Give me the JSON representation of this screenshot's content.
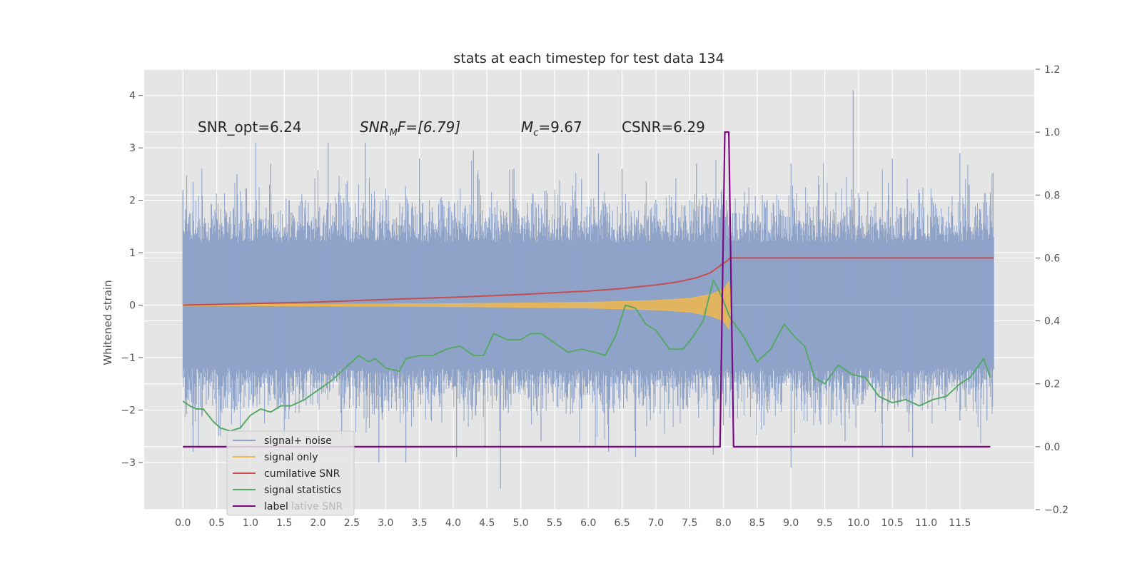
{
  "chart_data": {
    "type": "line",
    "title": "stats at each timestep for test data 134",
    "ylabel": "Whitened strain",
    "xlabel": "",
    "xlim": [
      -0.5735,
      12.6
    ],
    "ylim_left": [
      -3.9,
      4.5
    ],
    "ylim_right": [
      -0.2,
      1.2
    ],
    "grid": true,
    "legend_position": "lower-left",
    "x_ticks": [
      "0.0",
      "0.5",
      "1.0",
      "1.5",
      "2.0",
      "2.5",
      "3.0",
      "3.5",
      "4.0",
      "4.5",
      "5.0",
      "5.5",
      "6.0",
      "6.5",
      "7.0",
      "7.5",
      "8.0",
      "8.5",
      "9.0",
      "9.5",
      "10.0",
      "10.5",
      "11.0",
      "11.5"
    ],
    "y_ticks_left": [
      "−3",
      "−2",
      "−1",
      "0",
      "1",
      "2",
      "3",
      "4"
    ],
    "y_ticks_right": [
      "−0.2",
      "0.0",
      "0.2",
      "0.4",
      "0.6",
      "0.8",
      "1.0",
      "1.2"
    ],
    "annotations": {
      "snr_opt": "SNR_opt=6.24",
      "snr_mf_main": "SNR",
      "snr_mf_sub": "M",
      "snr_mf_rest": "F=[6.79]",
      "mc_main": "M",
      "mc_sub": "c",
      "mc_rest": "=9.67",
      "csnr": "CSNR=6.29"
    },
    "legend": {
      "entries": [
        "signal+ noise",
        "signal only",
        "cumilative SNR",
        "signal statistics",
        "label"
      ],
      "ghost_text": "lative SNR"
    },
    "colors": {
      "signal_noise": "#8fa3c9",
      "signal_only": "#f0b94e",
      "cumulative_snr": "#c44e52",
      "signal_statistics": "#55a868",
      "label": "#7b0a82",
      "axes_bg": "#e5e5e5",
      "grid": "#ffffff"
    },
    "series": [
      {
        "name": "signal+ noise",
        "axis": "left",
        "kind": "noise-band",
        "x_range": [
          0.0,
          12.0
        ],
        "core_amplitude": 1.0,
        "spike_max_values": [
          [
            0.0,
            2.2
          ],
          [
            0.15,
            2.35
          ],
          [
            0.8,
            2.5
          ],
          [
            1.3,
            2.7
          ],
          [
            2.15,
            3.1
          ],
          [
            2.7,
            3.1
          ],
          [
            3.5,
            2.8
          ],
          [
            4.3,
            2.95
          ],
          [
            4.9,
            2.6
          ],
          [
            5.9,
            2.4
          ],
          [
            6.15,
            2.9
          ],
          [
            6.5,
            2.6
          ],
          [
            7.6,
            2.7
          ],
          [
            9.0,
            2.7
          ],
          [
            9.92,
            4.1
          ],
          [
            10.5,
            2.8
          ],
          [
            11.5,
            2.9
          ],
          [
            11.95,
            2.15
          ]
        ],
        "spike_min_values": [
          [
            0.15,
            -2.8
          ],
          [
            0.55,
            -2.5
          ],
          [
            1.5,
            -2.6
          ],
          [
            2.35,
            -2.6
          ],
          [
            2.9,
            -3.0
          ],
          [
            3.3,
            -3.0
          ],
          [
            4.05,
            -2.9
          ],
          [
            4.7,
            -3.5
          ],
          [
            5.3,
            -2.6
          ],
          [
            6.3,
            -2.8
          ],
          [
            6.7,
            -2.9
          ],
          [
            7.85,
            -2.85
          ],
          [
            8.6,
            -2.3
          ],
          [
            9.0,
            -3.1
          ],
          [
            9.8,
            -2.6
          ],
          [
            10.8,
            -2.9
          ],
          [
            11.5,
            -2.2
          ],
          [
            11.9,
            -2.2
          ]
        ]
      },
      {
        "name": "signal only",
        "axis": "left",
        "kind": "chirp",
        "envelope": [
          [
            0.0,
            0.01
          ],
          [
            1.0,
            0.012
          ],
          [
            2.0,
            0.015
          ],
          [
            3.0,
            0.02
          ],
          [
            4.0,
            0.028
          ],
          [
            5.0,
            0.04
          ],
          [
            6.0,
            0.055
          ],
          [
            6.5,
            0.07
          ],
          [
            7.0,
            0.09
          ],
          [
            7.5,
            0.13
          ],
          [
            7.8,
            0.2
          ],
          [
            8.0,
            0.3
          ],
          [
            8.08,
            0.45
          ],
          [
            8.12,
            0.0
          ],
          [
            12.0,
            0.0
          ]
        ]
      },
      {
        "name": "cumilative SNR",
        "axis": "right",
        "x": [
          0.0,
          1.0,
          2.0,
          3.0,
          4.0,
          5.0,
          6.0,
          6.5,
          7.0,
          7.3,
          7.6,
          7.8,
          7.95,
          8.05,
          8.1,
          12.0
        ],
        "y": [
          0.45,
          0.455,
          0.46,
          0.468,
          0.475,
          0.484,
          0.495,
          0.503,
          0.514,
          0.523,
          0.537,
          0.552,
          0.575,
          0.59,
          0.6,
          0.6
        ]
      },
      {
        "name": "signal statistics",
        "axis": "right",
        "x": [
          0.0,
          0.1,
          0.2,
          0.3,
          0.45,
          0.55,
          0.7,
          0.85,
          1.0,
          1.15,
          1.3,
          1.45,
          1.6,
          1.8,
          2.0,
          2.2,
          2.4,
          2.6,
          2.75,
          2.85,
          3.0,
          3.2,
          3.3,
          3.5,
          3.7,
          3.9,
          4.1,
          4.3,
          4.45,
          4.6,
          4.8,
          5.0,
          5.15,
          5.3,
          5.5,
          5.7,
          5.9,
          6.1,
          6.25,
          6.4,
          6.55,
          6.7,
          6.85,
          7.0,
          7.2,
          7.4,
          7.55,
          7.7,
          7.85,
          7.95,
          8.1,
          8.3,
          8.5,
          8.7,
          8.9,
          9.05,
          9.2,
          9.35,
          9.5,
          9.7,
          9.9,
          10.1,
          10.3,
          10.5,
          10.7,
          10.9,
          11.1,
          11.3,
          11.5,
          11.65,
          11.85,
          11.95
        ],
        "y": [
          0.145,
          0.13,
          0.12,
          0.12,
          0.08,
          0.06,
          0.05,
          0.06,
          0.1,
          0.12,
          0.11,
          0.13,
          0.13,
          0.15,
          0.18,
          0.21,
          0.25,
          0.29,
          0.27,
          0.28,
          0.25,
          0.24,
          0.28,
          0.29,
          0.29,
          0.31,
          0.32,
          0.29,
          0.29,
          0.36,
          0.34,
          0.34,
          0.36,
          0.36,
          0.33,
          0.3,
          0.31,
          0.3,
          0.29,
          0.35,
          0.45,
          0.44,
          0.39,
          0.37,
          0.31,
          0.31,
          0.35,
          0.4,
          0.53,
          0.49,
          0.41,
          0.35,
          0.27,
          0.31,
          0.39,
          0.35,
          0.32,
          0.22,
          0.2,
          0.26,
          0.23,
          0.22,
          0.16,
          0.14,
          0.15,
          0.13,
          0.15,
          0.16,
          0.2,
          0.22,
          0.28,
          0.22
        ]
      },
      {
        "name": "label",
        "axis": "right",
        "x": [
          0.0,
          7.95,
          8.02,
          8.08,
          8.15,
          11.95
        ],
        "y": [
          0.0,
          0.0,
          1.0,
          1.0,
          0.0,
          0.0
        ]
      }
    ]
  }
}
